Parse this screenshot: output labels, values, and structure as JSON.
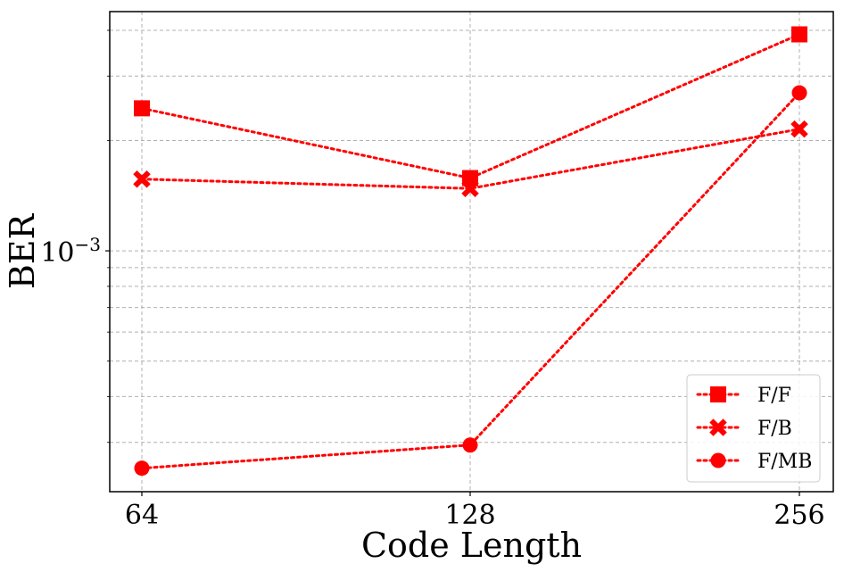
{
  "chart_data": {
    "type": "line",
    "xlabel": "Code Length",
    "ylabel": "BER",
    "x": [
      64,
      128,
      256
    ],
    "x_tick_labels": [
      "64",
      "128",
      "256"
    ],
    "y_scale": "log",
    "ylim": [
      0.00022,
      0.0045
    ],
    "y_tick_label": {
      "base": "10",
      "exp": "−3",
      "value": 0.001
    },
    "grid": true,
    "legend_position": "lower-right",
    "color": "#ff0000",
    "series": [
      {
        "name": "F/F",
        "marker": "square",
        "values": [
          0.00245,
          0.00158,
          0.0039
        ]
      },
      {
        "name": "F/B",
        "marker": "x",
        "values": [
          0.00157,
          0.00148,
          0.00215
        ]
      },
      {
        "name": "F/MB",
        "marker": "circle",
        "values": [
          0.000255,
          0.000295,
          0.0027
        ]
      }
    ]
  }
}
